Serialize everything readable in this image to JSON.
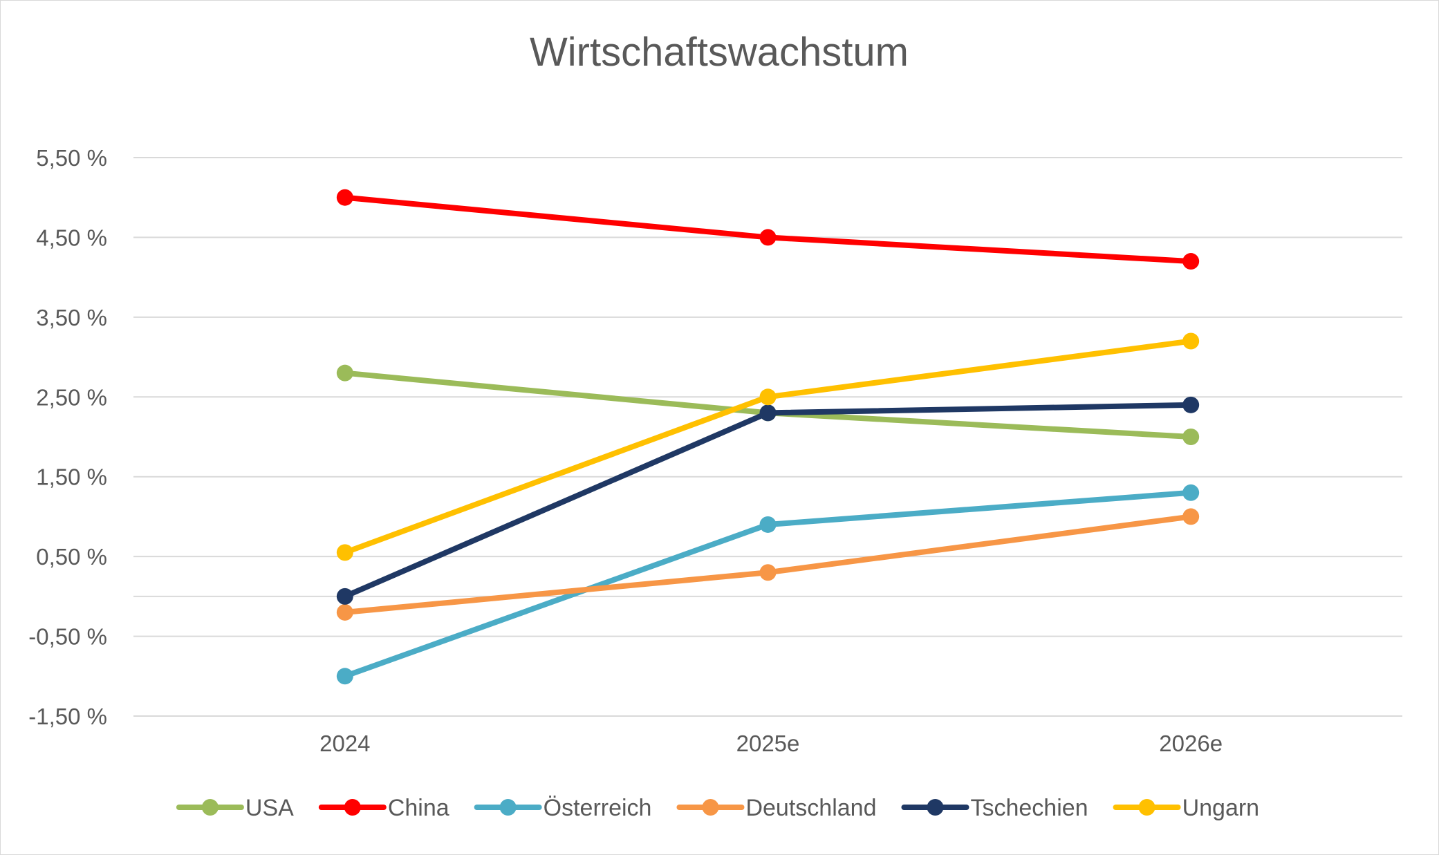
{
  "chart_data": {
    "type": "line",
    "title": "Wirtschaftswachstum",
    "xlabel": "",
    "ylabel": "",
    "categories": [
      "2024",
      "2025e",
      "2026e"
    ],
    "ylim": [
      -1.5,
      5.5
    ],
    "y_ticks": [
      5.5,
      4.5,
      3.5,
      2.5,
      1.5,
      0.5,
      -0.5,
      -1.5
    ],
    "y_tick_labels": [
      "5,50 %",
      "4,50 %",
      "3,50 %",
      "2,50 %",
      "1,50 %",
      "0,50 %",
      "-0,50 %",
      "-1,50 %"
    ],
    "grid": true,
    "legend_position": "bottom",
    "series": [
      {
        "name": "USA",
        "color": "#9BBB59",
        "values": [
          2.8,
          2.3,
          2.0
        ]
      },
      {
        "name": "China",
        "color": "#FF0000",
        "values": [
          5.0,
          4.5,
          4.2
        ]
      },
      {
        "name": "Österreich",
        "color": "#4BACC6",
        "values": [
          -1.0,
          0.9,
          1.3
        ]
      },
      {
        "name": "Deutschland",
        "color": "#F79646",
        "values": [
          -0.2,
          0.3,
          1.0
        ]
      },
      {
        "name": "Tschechien",
        "color": "#1F3864",
        "values": [
          0.0,
          2.3,
          2.4
        ]
      },
      {
        "name": "Ungarn",
        "color": "#FFC000",
        "values": [
          0.55,
          2.5,
          3.2
        ]
      }
    ]
  }
}
